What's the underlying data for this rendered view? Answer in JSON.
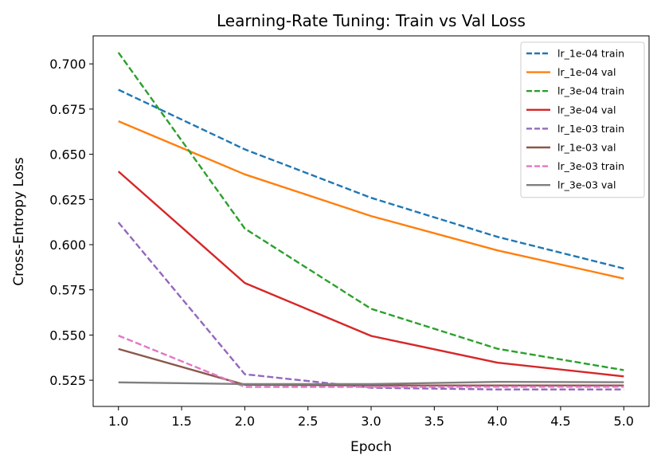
{
  "chart_data": {
    "type": "line",
    "title": "Learning-Rate Tuning: Train vs Val Loss",
    "xlabel": "Epoch",
    "ylabel": "Cross-Entropy Loss",
    "x": [
      1,
      2,
      3,
      4,
      5
    ],
    "xlim": [
      0.8,
      5.2
    ],
    "ylim": [
      0.5105,
      0.7155
    ],
    "xticks": [
      1.0,
      1.5,
      2.0,
      2.5,
      3.0,
      3.5,
      4.0,
      4.5,
      5.0
    ],
    "xtick_labels": [
      "1.0",
      "1.5",
      "2.0",
      "2.5",
      "3.0",
      "3.5",
      "4.0",
      "4.5",
      "5.0"
    ],
    "yticks": [
      0.525,
      0.55,
      0.575,
      0.6,
      0.625,
      0.65,
      0.675,
      0.7
    ],
    "ytick_labels": [
      "0.525",
      "0.550",
      "0.575",
      "0.600",
      "0.625",
      "0.650",
      "0.675",
      "0.700"
    ],
    "grid": false,
    "legend": "top-right",
    "series": [
      {
        "name": "lr_1e-04 train",
        "values": [
          0.6857,
          0.6527,
          0.6259,
          0.6043,
          0.5868
        ],
        "color": "#1f77b4",
        "dash": true
      },
      {
        "name": "lr_1e-04 val",
        "values": [
          0.6683,
          0.6389,
          0.6158,
          0.5968,
          0.5812
        ],
        "color": "#ff7f0e",
        "dash": false
      },
      {
        "name": "lr_3e-04 train",
        "values": [
          0.7063,
          0.6089,
          0.5645,
          0.5424,
          0.5306
        ],
        "color": "#2ca02c",
        "dash": true
      },
      {
        "name": "lr_3e-04 val",
        "values": [
          0.6405,
          0.5788,
          0.5495,
          0.5347,
          0.5271
        ],
        "color": "#d62728",
        "dash": false
      },
      {
        "name": "lr_1e-03 train",
        "values": [
          0.6123,
          0.5283,
          0.5208,
          0.5199,
          0.5199
        ],
        "color": "#9467bd",
        "dash": true
      },
      {
        "name": "lr_1e-03 val",
        "values": [
          0.5423,
          0.5225,
          0.5221,
          0.5221,
          0.5221
        ],
        "color": "#8c564b",
        "dash": false
      },
      {
        "name": "lr_3e-03 train",
        "values": [
          0.5497,
          0.5213,
          0.5213,
          0.5214,
          0.5214
        ],
        "color": "#e377c2",
        "dash": true
      },
      {
        "name": "lr_3e-03 val",
        "values": [
          0.5238,
          0.5229,
          0.5229,
          0.5241,
          0.5239
        ],
        "color": "#7f7f7f",
        "dash": false
      }
    ]
  }
}
